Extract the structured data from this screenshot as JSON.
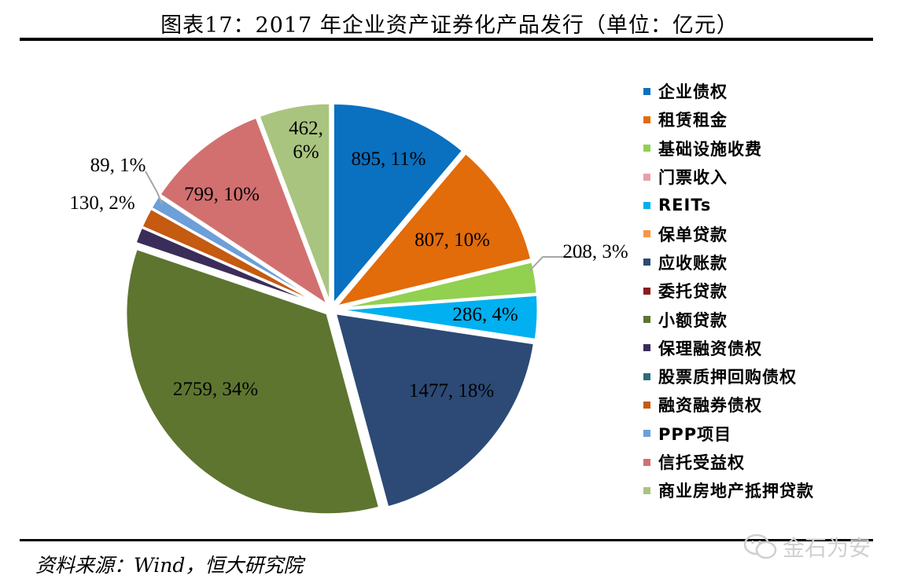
{
  "title": "图表17：2017 年企业资产证券化产品发行（单位：亿元）",
  "source": "资料来源：Wind，恒大研究院",
  "watermark": "金石为安",
  "chart_data": {
    "type": "pie",
    "categories": [
      "企业债权",
      "租赁租金",
      "基础设施收费",
      "门票收入",
      "REITs",
      "保单贷款",
      "应收账款",
      "委托贷款",
      "小额贷款",
      "保理融资债权",
      "股票质押回购债权",
      "融资融券债权",
      "PPP项目",
      "信托受益权",
      "商业房地产抵押贷款"
    ],
    "values": [
      895,
      807,
      208,
      0,
      286,
      0,
      1477,
      0,
      2759,
      107,
      0,
      130,
      89,
      799,
      462
    ],
    "percent_labels": [
      "11%",
      "10%",
      "3%",
      "",
      "4%",
      "",
      "18%",
      "",
      "34%",
      "",
      "",
      "2%",
      "1%",
      "10%",
      "6%"
    ],
    "data_labels": [
      "895, 11%",
      "807, 10%",
      "208, 3%",
      "",
      "286, 4%",
      "",
      "1477, 18%",
      "",
      "2759, 34%",
      "",
      "",
      "130, 2%",
      "89, 1%",
      "799, 10%",
      "462,\n6%"
    ],
    "colors": [
      "#0a70c0",
      "#e26b0a",
      "#92d050",
      "#e6a0a8",
      "#00b0f0",
      "#f79646",
      "#2c4a75",
      "#8b1a1a",
      "#5e7530",
      "#3b2d5a",
      "#2f6b7a",
      "#c55a11",
      "#6d9fd8",
      "#d27070",
      "#a9c47f"
    ],
    "legend_position": "right",
    "start_angle_deg": 0,
    "direction": "clockwise"
  }
}
